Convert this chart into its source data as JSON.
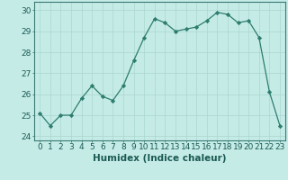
{
  "xlabel": "Humidex (Indice chaleur)",
  "x": [
    0,
    1,
    2,
    3,
    4,
    5,
    6,
    7,
    8,
    9,
    10,
    11,
    12,
    13,
    14,
    15,
    16,
    17,
    18,
    19,
    20,
    21,
    22,
    23
  ],
  "y": [
    25.1,
    24.5,
    25.0,
    25.0,
    25.8,
    26.4,
    25.9,
    25.7,
    26.4,
    27.6,
    28.7,
    29.6,
    29.4,
    29.0,
    29.1,
    29.2,
    29.5,
    29.9,
    29.8,
    29.4,
    29.5,
    28.7,
    26.1,
    24.5
  ],
  "line_color": "#2d7d6d",
  "marker": "D",
  "marker_size": 2.2,
  "bg_color": "#c5ebe7",
  "grid_color": "#aad6d0",
  "ylim": [
    23.8,
    30.4
  ],
  "yticks": [
    24,
    25,
    26,
    27,
    28,
    29,
    30
  ],
  "tick_fontsize": 6.5,
  "xlabel_fontsize": 7.5
}
